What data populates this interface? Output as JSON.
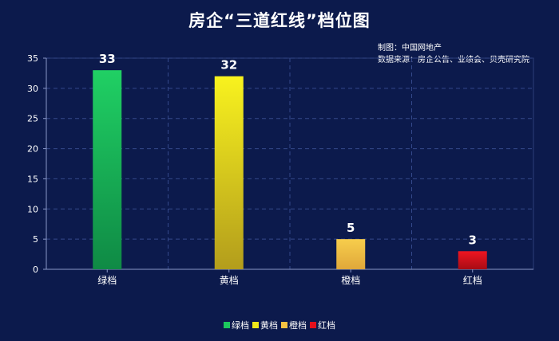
{
  "chart_data": {
    "type": "bar",
    "title": "房企“三道红线”档位图",
    "source_lines": [
      "制图：中国网地产",
      "数据来源：房企公告、业绩会、贝壳研究院"
    ],
    "categories": [
      "绿档",
      "黄档",
      "橙档",
      "红档"
    ],
    "values": [
      33,
      32,
      5,
      3
    ],
    "colors": [
      "#1cc85e",
      "#f0e81a",
      "#f5c242",
      "#e3101c"
    ],
    "ylim": [
      0,
      35
    ],
    "yticks": [
      0,
      5,
      10,
      15,
      20,
      25,
      30,
      35
    ],
    "grid": true,
    "legend_position": "bottom",
    "data_labels": true,
    "xlabel": "",
    "ylabel": ""
  }
}
